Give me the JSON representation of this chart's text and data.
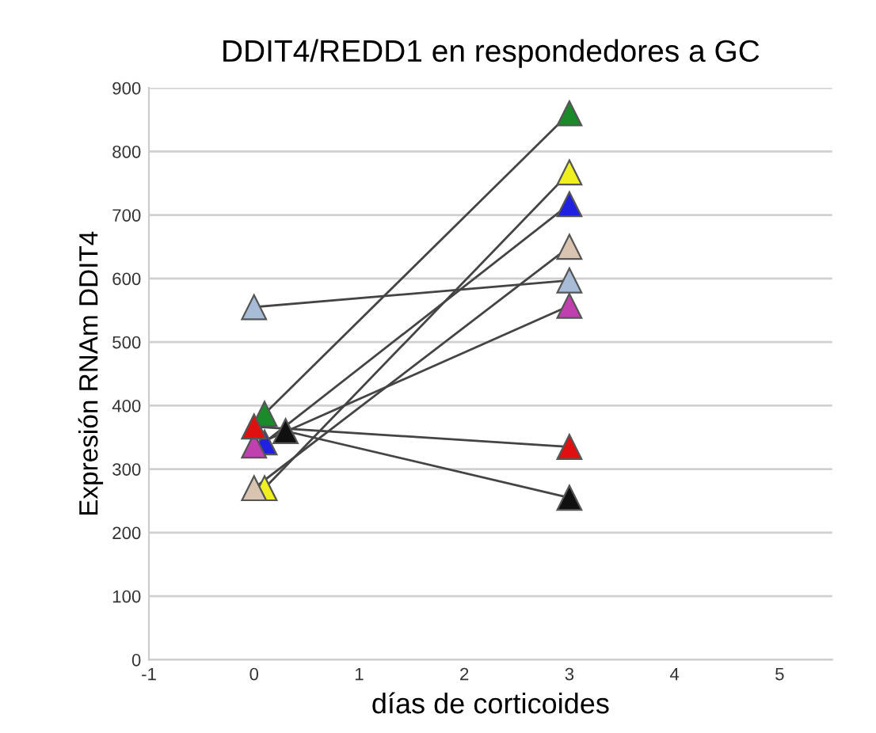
{
  "chart_data": {
    "type": "line",
    "title": "DDIT4/REDD1 en respondedores a GC",
    "xlabel": "días de corticoides",
    "ylabel": "Expresión RNAm DDIT4",
    "series": [
      {
        "color": "#1a8a2a",
        "x": [
          0.1,
          3
        ],
        "values": [
          387,
          860
        ]
      },
      {
        "color": "#f0f020",
        "x": [
          0.1,
          3
        ],
        "values": [
          270,
          767
        ]
      },
      {
        "color": "#2020e0",
        "x": [
          0.1,
          3
        ],
        "values": [
          342,
          717
        ]
      },
      {
        "color": "#d8c4b0",
        "x": [
          0,
          3
        ],
        "values": [
          270,
          650
        ]
      },
      {
        "color": "#a8bcd8",
        "x": [
          0,
          3
        ],
        "values": [
          555,
          597
        ]
      },
      {
        "color": "#c040b0",
        "x": [
          0,
          3
        ],
        "values": [
          337,
          557
        ]
      },
      {
        "color": "#e01010",
        "x": [
          0,
          3
        ],
        "values": [
          367,
          335
        ]
      },
      {
        "color": "#101010",
        "x": [
          0.3,
          3
        ],
        "values": [
          360,
          255
        ]
      }
    ],
    "xlim": [
      -1,
      5.5
    ],
    "xticks": [
      -1,
      0,
      1,
      2,
      3,
      4,
      5
    ],
    "ylim": [
      0,
      900
    ],
    "yticks": [
      0,
      100,
      200,
      300,
      400,
      500,
      600,
      700,
      800,
      900
    ],
    "grid": "y",
    "marker": "triangle",
    "line_style": "solid",
    "legend": false
  }
}
